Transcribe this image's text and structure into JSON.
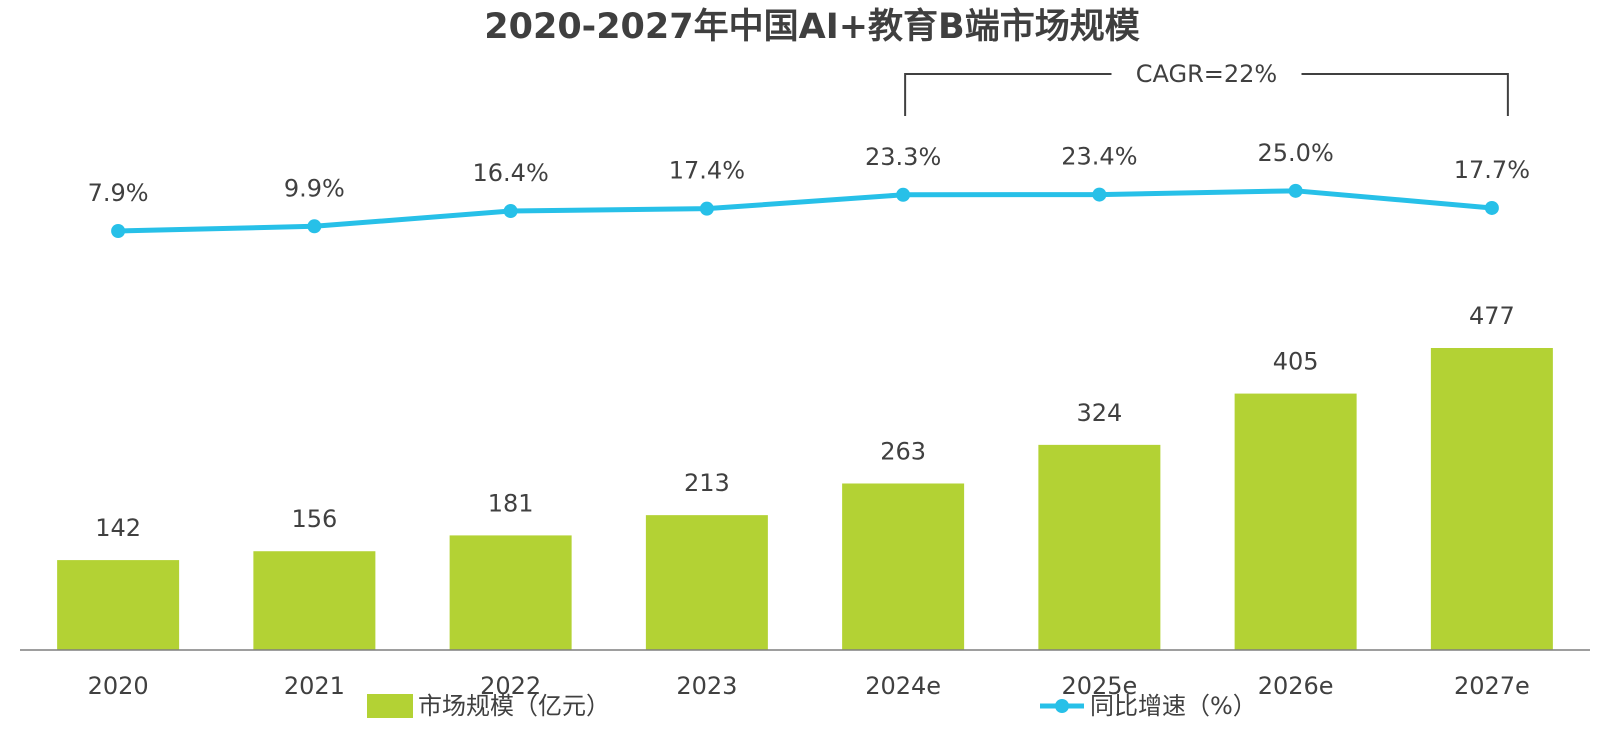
{
  "chart_data": {
    "type": "bar",
    "title": "2020-2027年中国AI+教育B端市场规模",
    "categories": [
      "2020",
      "2021",
      "2022",
      "2023",
      "2024e",
      "2025e",
      "2026e",
      "2027e"
    ],
    "series": [
      {
        "name": "市场规模（亿元）",
        "type": "bar",
        "values": [
          142,
          156,
          181,
          213,
          263,
          324,
          405,
          477
        ],
        "labels": [
          "142",
          "156",
          "181",
          "213",
          "263",
          "324",
          "405",
          "477"
        ],
        "color": "#b3d234"
      },
      {
        "name": "同比增速（%）",
        "type": "line",
        "values": [
          7.9,
          9.9,
          16.4,
          17.4,
          23.3,
          23.4,
          25.0,
          17.7
        ],
        "labels": [
          "7.9%",
          "9.9%",
          "16.4%",
          "17.4%",
          "23.3%",
          "23.4%",
          "25.0%",
          "17.7%"
        ],
        "color": "#27c0e8"
      }
    ],
    "annotation": {
      "text": "CAGR=22%",
      "from_category": "2024e",
      "to_category": "2027e"
    },
    "xlabel": "",
    "ylabel": "",
    "grid": false,
    "legend_position": "bottom"
  }
}
